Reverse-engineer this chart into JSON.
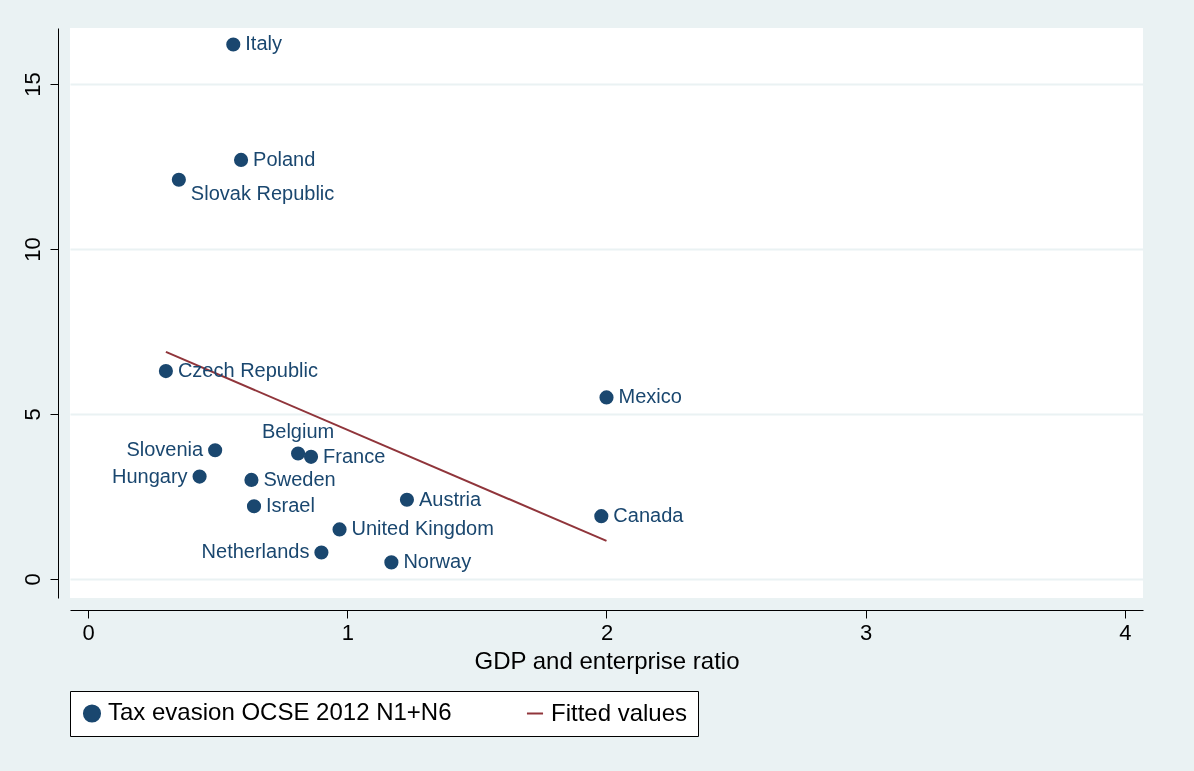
{
  "chart_data": {
    "type": "scatter",
    "xlabel": "GDP and enterprise ratio",
    "xlim": [
      -0.07,
      4.07
    ],
    "ylim": [
      -0.58,
      16.7
    ],
    "xticks": [
      0,
      1,
      2,
      3,
      4
    ],
    "yticks": [
      0,
      5,
      10,
      15
    ],
    "grid": "y",
    "legend": "bottom",
    "series": [
      {
        "name": "Tax evasion OCSE 2012 N1+N6",
        "color": "#1a476f",
        "x": [
          0.56,
          0.59,
          0.35,
          0.3,
          2.0,
          0.49,
          0.81,
          0.86,
          0.43,
          0.63,
          0.64,
          1.23,
          0.97,
          0.9,
          1.17,
          1.98
        ],
        "values": [
          16.2,
          12.7,
          12.1,
          6.3,
          5.5,
          3.9,
          3.8,
          3.7,
          3.1,
          3.0,
          2.2,
          2.4,
          1.5,
          0.8,
          0.5,
          1.9
        ]
      },
      {
        "name": "Fitted values",
        "type": "line",
        "color": "#90353b",
        "x": [
          0.3,
          2.0
        ],
        "values": [
          6.88,
          1.15
        ]
      }
    ],
    "annotations": [
      {
        "text": "Italy",
        "x": 0.56,
        "y": 16.2
      },
      {
        "text": "Poland",
        "x": 0.59,
        "y": 12.7
      },
      {
        "text": "Slovak Republic",
        "x": 0.35,
        "y": 12.1
      },
      {
        "text": "Czech Republic",
        "x": 0.3,
        "y": 6.3
      },
      {
        "text": "Mexico",
        "x": 2.0,
        "y": 5.5
      },
      {
        "text": "Slovenia",
        "x": 0.49,
        "y": 3.9
      },
      {
        "text": "Belgium",
        "x": 0.81,
        "y": 3.8
      },
      {
        "text": "France",
        "x": 0.86,
        "y": 3.7
      },
      {
        "text": "Hungary",
        "x": 0.43,
        "y": 3.1
      },
      {
        "text": "Sweden",
        "x": 0.63,
        "y": 3.0
      },
      {
        "text": "Israel",
        "x": 0.64,
        "y": 2.2
      },
      {
        "text": "Austria",
        "x": 1.23,
        "y": 2.4
      },
      {
        "text": "United Kingdom",
        "x": 0.97,
        "y": 1.5
      },
      {
        "text": "Netherlands",
        "x": 0.9,
        "y": 0.8
      },
      {
        "text": "Norway",
        "x": 1.17,
        "y": 0.5
      },
      {
        "text": "Canada",
        "x": 1.98,
        "y": 1.9
      }
    ]
  }
}
